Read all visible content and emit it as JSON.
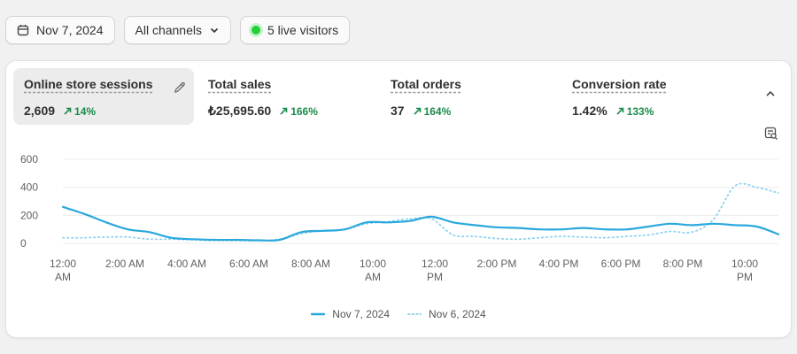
{
  "toolbar": {
    "date_label": "Nov 7, 2024",
    "channels_label": "All channels",
    "live_label": "5 live visitors"
  },
  "metrics": [
    {
      "label": "Online store sessions",
      "value": "2,609",
      "change": "14%"
    },
    {
      "label": "Total sales",
      "value": "₺25,695.60",
      "change": "166%"
    },
    {
      "label": "Total orders",
      "value": "37",
      "change": "164%"
    },
    {
      "label": "Conversion rate",
      "value": "1.42%",
      "change": "133%"
    }
  ],
  "colors": {
    "primary_series": "#2aa8dc",
    "secondary_series": "#8fd3ef",
    "positive": "#1a8a4a",
    "live_dot": "#22d13a"
  },
  "icons": {
    "date": "calendar-icon",
    "channels": "chevron-down-icon",
    "edit": "pencil-icon",
    "collapse": "chevron-up-icon",
    "view_data": "magnify-table-icon"
  },
  "chart_data": {
    "type": "line",
    "ylim": [
      0,
      600
    ],
    "y_ticks": [
      "600",
      "400",
      "200",
      "0"
    ],
    "x_ticks": [
      [
        "12:00",
        "AM"
      ],
      [
        "2:00 AM"
      ],
      [
        "4:00 AM"
      ],
      [
        "6:00 AM"
      ],
      [
        "8:00 AM"
      ],
      [
        "10:00",
        "AM"
      ],
      [
        "12:00",
        "PM"
      ],
      [
        "2:00 PM"
      ],
      [
        "4:00 PM"
      ],
      [
        "6:00 PM"
      ],
      [
        "8:00 PM"
      ],
      [
        "10:00",
        "PM"
      ]
    ],
    "grid": true,
    "legend_position": "bottom-center",
    "series": [
      {
        "name": "Nov 7, 2024",
        "style": "solid",
        "values": [
          260,
          210,
          150,
          100,
          80,
          40,
          30,
          25,
          25,
          22,
          25,
          80,
          90,
          100,
          150,
          150,
          160,
          190,
          150,
          130,
          115,
          110,
          100,
          100,
          110,
          100,
          100,
          120,
          140,
          130,
          140,
          130,
          120,
          65
        ]
      },
      {
        "name": "Nov 6, 2024",
        "style": "dotted",
        "values": [
          40,
          40,
          45,
          45,
          30,
          30,
          25,
          20,
          20,
          20,
          30,
          70,
          90,
          100,
          140,
          155,
          175,
          175,
          60,
          50,
          35,
          30,
          40,
          50,
          45,
          40,
          50,
          60,
          85,
          80,
          170,
          410,
          400,
          360
        ]
      }
    ]
  }
}
